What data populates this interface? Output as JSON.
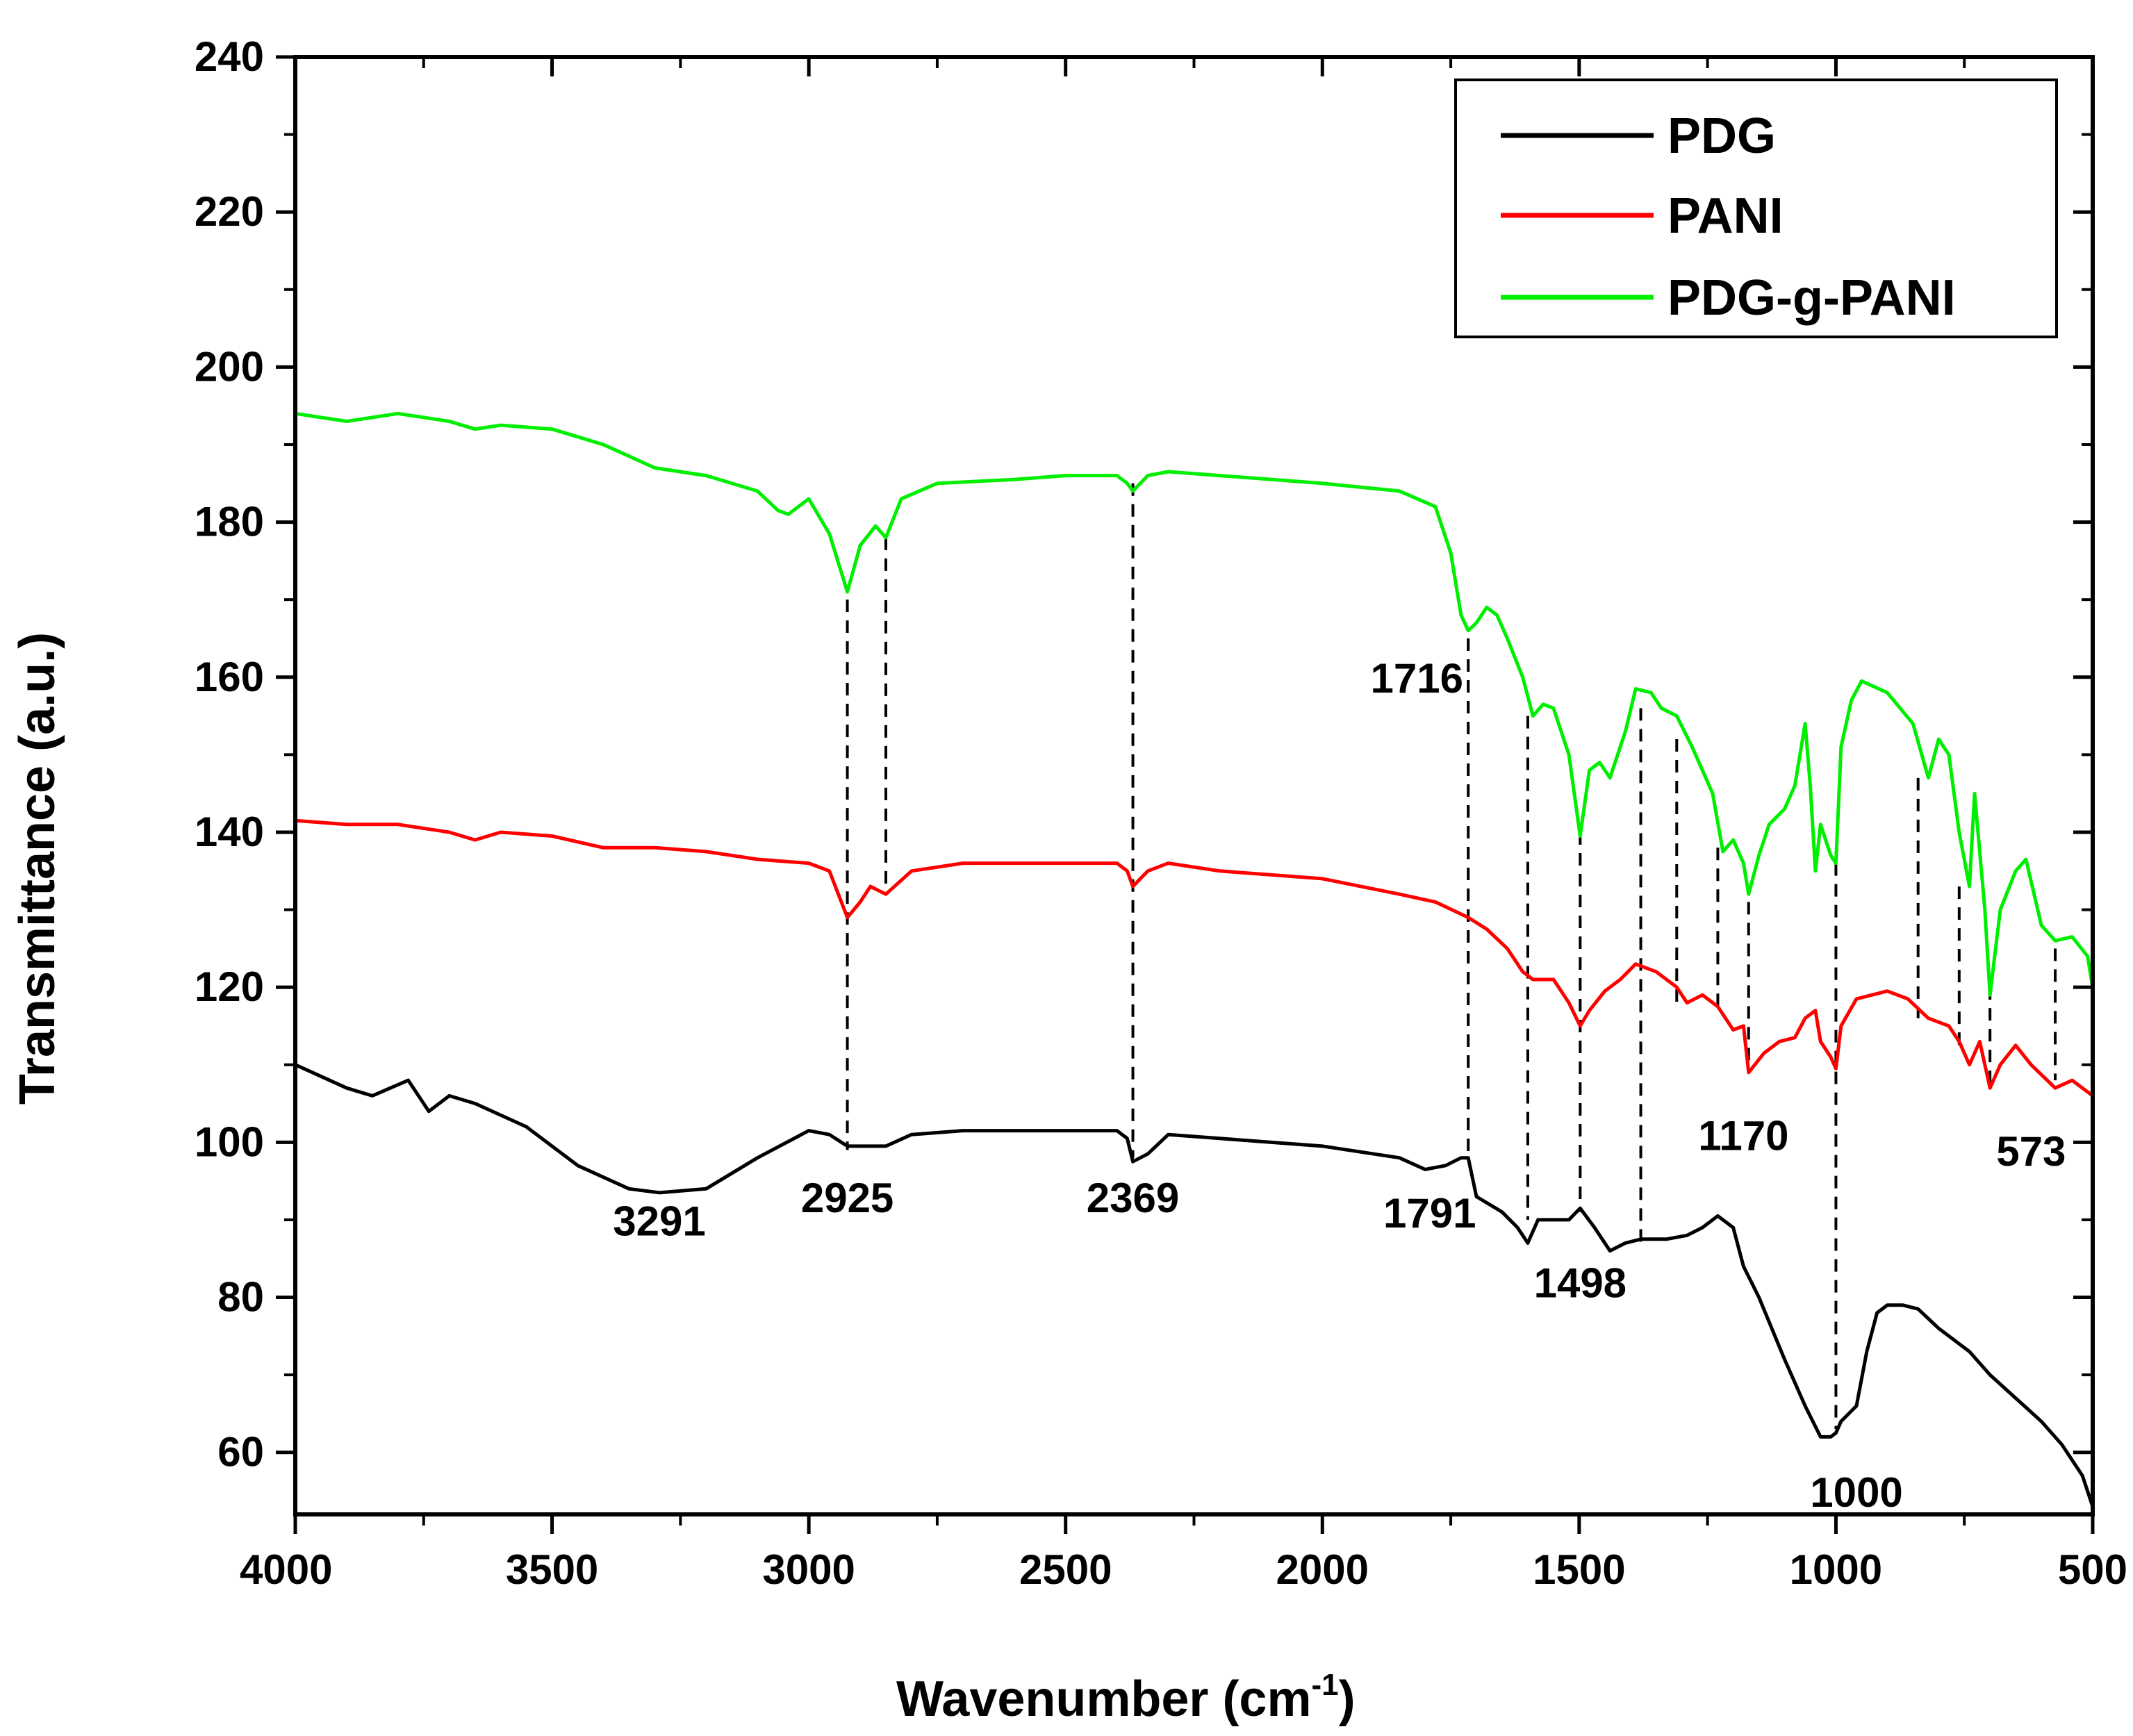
{
  "chart_data": {
    "type": "line",
    "title": "",
    "xlabel": "Wavenumber (cm",
    "xlabel_superscript": "-1",
    "xlabel_close": ")",
    "ylabel": "Transmittance (a.u.)",
    "xlim": [
      4000,
      500
    ],
    "ylim": [
      52,
      240
    ],
    "x_ticks": [
      4000,
      3500,
      3000,
      2500,
      2000,
      1500,
      1000,
      500
    ],
    "y_ticks": [
      60,
      80,
      100,
      120,
      140,
      160,
      180,
      200,
      220,
      240
    ],
    "legend_position": "top-right",
    "series": [
      {
        "name": "PDG",
        "color": "#000000",
        "points": [
          [
            4000,
            110
          ],
          [
            3900,
            107
          ],
          [
            3850,
            106
          ],
          [
            3780,
            108
          ],
          [
            3740,
            104
          ],
          [
            3700,
            106
          ],
          [
            3650,
            105
          ],
          [
            3550,
            102
          ],
          [
            3450,
            97
          ],
          [
            3350,
            94
          ],
          [
            3291,
            93.5
          ],
          [
            3200,
            94
          ],
          [
            3100,
            98
          ],
          [
            3000,
            101.5
          ],
          [
            2960,
            101
          ],
          [
            2925,
            99.5
          ],
          [
            2880,
            99.5
          ],
          [
            2850,
            99.5
          ],
          [
            2800,
            101
          ],
          [
            2700,
            101.5
          ],
          [
            2500,
            101.5
          ],
          [
            2400,
            101.5
          ],
          [
            2380,
            100.5
          ],
          [
            2369,
            97.5
          ],
          [
            2340,
            98.5
          ],
          [
            2300,
            101
          ],
          [
            2200,
            100.5
          ],
          [
            2000,
            99.5
          ],
          [
            1850,
            98
          ],
          [
            1800,
            96.5
          ],
          [
            1760,
            97
          ],
          [
            1730,
            98
          ],
          [
            1716,
            98
          ],
          [
            1700,
            93
          ],
          [
            1650,
            91
          ],
          [
            1620,
            89
          ],
          [
            1600,
            87
          ],
          [
            1580,
            90
          ],
          [
            1550,
            90
          ],
          [
            1520,
            90
          ],
          [
            1498,
            91.5
          ],
          [
            1470,
            89
          ],
          [
            1440,
            86
          ],
          [
            1410,
            87
          ],
          [
            1380,
            87.5
          ],
          [
            1330,
            87.5
          ],
          [
            1290,
            88
          ],
          [
            1260,
            89
          ],
          [
            1230,
            90.5
          ],
          [
            1200,
            89
          ],
          [
            1180,
            84
          ],
          [
            1150,
            80
          ],
          [
            1100,
            72
          ],
          [
            1060,
            66
          ],
          [
            1030,
            62
          ],
          [
            1010,
            62
          ],
          [
            1000,
            62.5
          ],
          [
            990,
            64
          ],
          [
            960,
            66
          ],
          [
            940,
            73
          ],
          [
            920,
            78
          ],
          [
            900,
            79
          ],
          [
            870,
            79
          ],
          [
            840,
            78.5
          ],
          [
            800,
            76
          ],
          [
            740,
            73
          ],
          [
            700,
            70
          ],
          [
            650,
            67
          ],
          [
            600,
            64
          ],
          [
            560,
            61
          ],
          [
            520,
            57
          ],
          [
            500,
            53
          ]
        ]
      },
      {
        "name": "PANI",
        "color": "#ff0000",
        "points": [
          [
            4000,
            141.5
          ],
          [
            3900,
            141
          ],
          [
            3800,
            141
          ],
          [
            3700,
            140
          ],
          [
            3650,
            139
          ],
          [
            3600,
            140
          ],
          [
            3500,
            139.5
          ],
          [
            3400,
            138
          ],
          [
            3300,
            138
          ],
          [
            3200,
            137.5
          ],
          [
            3100,
            136.5
          ],
          [
            3000,
            136
          ],
          [
            2960,
            135
          ],
          [
            2925,
            129
          ],
          [
            2900,
            131
          ],
          [
            2880,
            133
          ],
          [
            2850,
            132
          ],
          [
            2800,
            135
          ],
          [
            2700,
            136
          ],
          [
            2500,
            136
          ],
          [
            2400,
            136
          ],
          [
            2380,
            135
          ],
          [
            2369,
            133
          ],
          [
            2340,
            135
          ],
          [
            2300,
            136
          ],
          [
            2200,
            135
          ],
          [
            2000,
            134
          ],
          [
            1850,
            132
          ],
          [
            1780,
            131
          ],
          [
            1716,
            129
          ],
          [
            1680,
            127.5
          ],
          [
            1640,
            125
          ],
          [
            1610,
            122
          ],
          [
            1590,
            121
          ],
          [
            1550,
            121
          ],
          [
            1520,
            118
          ],
          [
            1498,
            115
          ],
          [
            1480,
            117
          ],
          [
            1450,
            119.5
          ],
          [
            1420,
            121
          ],
          [
            1390,
            123
          ],
          [
            1350,
            122
          ],
          [
            1310,
            120
          ],
          [
            1290,
            118
          ],
          [
            1260,
            119
          ],
          [
            1230,
            117.5
          ],
          [
            1200,
            114.5
          ],
          [
            1180,
            115
          ],
          [
            1170,
            109
          ],
          [
            1140,
            111.5
          ],
          [
            1110,
            113
          ],
          [
            1080,
            113.5
          ],
          [
            1060,
            116
          ],
          [
            1040,
            117
          ],
          [
            1030,
            113
          ],
          [
            1010,
            111
          ],
          [
            1000,
            109.5
          ],
          [
            990,
            115
          ],
          [
            960,
            118.5
          ],
          [
            900,
            119.5
          ],
          [
            860,
            118.5
          ],
          [
            820,
            116
          ],
          [
            780,
            115
          ],
          [
            760,
            113
          ],
          [
            740,
            110
          ],
          [
            720,
            113
          ],
          [
            700,
            107
          ],
          [
            680,
            110
          ],
          [
            650,
            112.5
          ],
          [
            620,
            110
          ],
          [
            573,
            107
          ],
          [
            540,
            108
          ],
          [
            500,
            106
          ]
        ]
      },
      {
        "name": "PDG-g-PANI",
        "color": "#00ee00",
        "points": [
          [
            4000,
            194
          ],
          [
            3900,
            193
          ],
          [
            3800,
            194
          ],
          [
            3700,
            193
          ],
          [
            3650,
            192
          ],
          [
            3600,
            192.5
          ],
          [
            3500,
            192
          ],
          [
            3400,
            190
          ],
          [
            3300,
            187
          ],
          [
            3200,
            186
          ],
          [
            3100,
            184
          ],
          [
            3060,
            181.5
          ],
          [
            3040,
            181
          ],
          [
            3000,
            183
          ],
          [
            2960,
            178.5
          ],
          [
            2925,
            171
          ],
          [
            2900,
            177
          ],
          [
            2870,
            179.5
          ],
          [
            2850,
            178
          ],
          [
            2820,
            183
          ],
          [
            2750,
            185
          ],
          [
            2600,
            185.5
          ],
          [
            2500,
            186
          ],
          [
            2400,
            186
          ],
          [
            2380,
            185
          ],
          [
            2369,
            184
          ],
          [
            2340,
            186
          ],
          [
            2300,
            186.5
          ],
          [
            2200,
            186
          ],
          [
            2000,
            185
          ],
          [
            1850,
            184
          ],
          [
            1780,
            182
          ],
          [
            1750,
            176
          ],
          [
            1730,
            168
          ],
          [
            1716,
            166
          ],
          [
            1700,
            167
          ],
          [
            1680,
            169
          ],
          [
            1660,
            168
          ],
          [
            1640,
            165
          ],
          [
            1610,
            160
          ],
          [
            1590,
            155
          ],
          [
            1570,
            156.5
          ],
          [
            1550,
            156
          ],
          [
            1520,
            150
          ],
          [
            1498,
            139.5
          ],
          [
            1480,
            148
          ],
          [
            1460,
            149
          ],
          [
            1440,
            147
          ],
          [
            1410,
            153
          ],
          [
            1390,
            158.5
          ],
          [
            1360,
            158
          ],
          [
            1340,
            156
          ],
          [
            1310,
            155
          ],
          [
            1280,
            151
          ],
          [
            1240,
            145
          ],
          [
            1220,
            137.5
          ],
          [
            1200,
            139
          ],
          [
            1180,
            136
          ],
          [
            1170,
            132
          ],
          [
            1150,
            137
          ],
          [
            1130,
            141
          ],
          [
            1100,
            143
          ],
          [
            1080,
            146
          ],
          [
            1060,
            154
          ],
          [
            1050,
            146
          ],
          [
            1040,
            135
          ],
          [
            1030,
            141
          ],
          [
            1010,
            137
          ],
          [
            1000,
            136
          ],
          [
            990,
            151
          ],
          [
            970,
            157
          ],
          [
            950,
            159.5
          ],
          [
            900,
            158
          ],
          [
            850,
            154
          ],
          [
            820,
            147
          ],
          [
            800,
            152
          ],
          [
            780,
            150
          ],
          [
            760,
            140
          ],
          [
            740,
            133
          ],
          [
            730,
            145
          ],
          [
            710,
            130
          ],
          [
            700,
            119
          ],
          [
            680,
            130
          ],
          [
            650,
            135
          ],
          [
            630,
            136.5
          ],
          [
            600,
            128
          ],
          [
            573,
            126
          ],
          [
            540,
            126.5
          ],
          [
            510,
            124
          ],
          [
            500,
            120
          ]
        ]
      }
    ],
    "guide_lines": [
      {
        "x": 2925,
        "y_top": 170,
        "y_bottom": 99
      },
      {
        "x": 2850,
        "y_top": 178,
        "y_bottom": 132
      },
      {
        "x": 2369,
        "y_top": 185,
        "y_bottom": 98
      },
      {
        "x": 1716,
        "y_top": 165,
        "y_bottom": 98
      },
      {
        "x": 1600,
        "y_top": 155,
        "y_bottom": 90
      },
      {
        "x": 1498,
        "y_top": 140,
        "y_bottom": 91
      },
      {
        "x": 1380,
        "y_top": 156,
        "y_bottom": 87
      },
      {
        "x": 1310,
        "y_top": 152,
        "y_bottom": 118
      },
      {
        "x": 1230,
        "y_top": 138,
        "y_bottom": 117
      },
      {
        "x": 1170,
        "y_top": 131,
        "y_bottom": 109
      },
      {
        "x": 1000,
        "y_top": 136,
        "y_bottom": 63
      },
      {
        "x": 840,
        "y_top": 147,
        "y_bottom": 116
      },
      {
        "x": 760,
        "y_top": 133,
        "y_bottom": 112
      },
      {
        "x": 700,
        "y_top": 120,
        "y_bottom": 107
      },
      {
        "x": 573,
        "y_top": 125,
        "y_bottom": 108
      }
    ],
    "annotations": [
      {
        "text": "3291",
        "x": 3291,
        "y": 88
      },
      {
        "text": "2925",
        "x": 2925,
        "y": 91
      },
      {
        "text": "2369",
        "x": 2369,
        "y": 91
      },
      {
        "text": "1791",
        "x": 1791,
        "y": 89
      },
      {
        "text": "1498",
        "x": 1498,
        "y": 80
      },
      {
        "text": "1716",
        "x": 1816,
        "y": 158
      },
      {
        "text": "1170",
        "x": 1180,
        "y": 99
      },
      {
        "text": "573",
        "x": 620,
        "y": 97
      },
      {
        "text": "1000",
        "x": 960,
        "y": 53
      }
    ]
  }
}
